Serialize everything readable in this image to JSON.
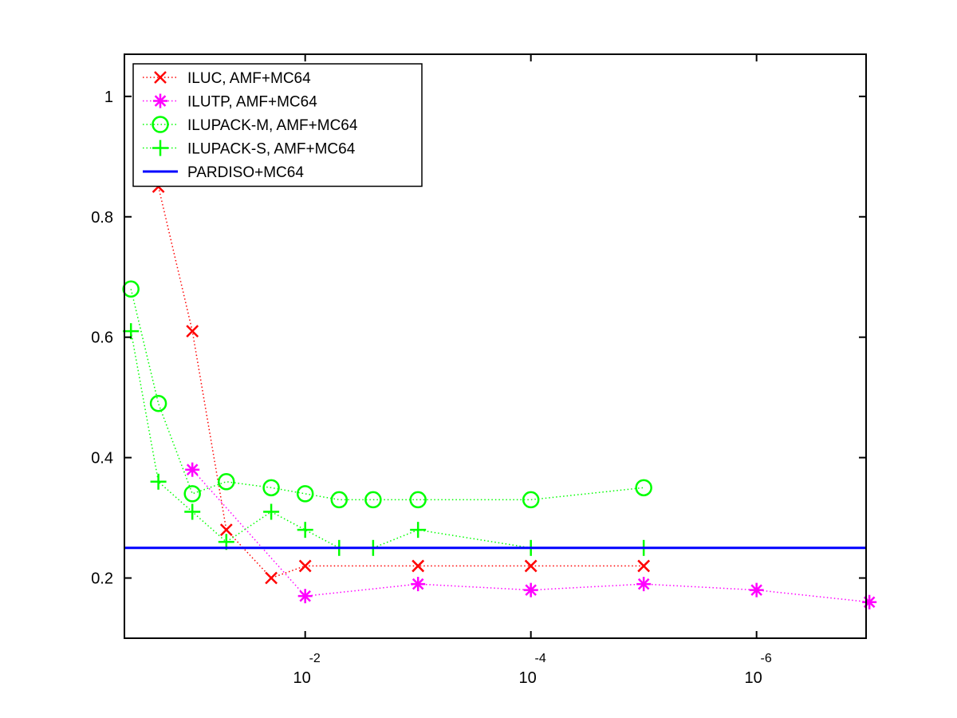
{
  "chart_data": {
    "type": "line",
    "title": "",
    "xlabel": "",
    "ylabel": "",
    "x_scale": "log",
    "x_reversed": true,
    "xlim": [
      0.4,
      1.07e-07
    ],
    "ylim": [
      0.1,
      1.07
    ],
    "grid": false,
    "legend_position": "top-left",
    "x_ticks": [
      {
        "value": 0.01,
        "base": "10",
        "exponent": "-2"
      },
      {
        "value": 0.0001,
        "base": "10",
        "exponent": "-4"
      },
      {
        "value": 1e-06,
        "base": "10",
        "exponent": "-6"
      }
    ],
    "y_ticks": [
      {
        "value": 0.2,
        "label": "0.2"
      },
      {
        "value": 0.4,
        "label": "0.4"
      },
      {
        "value": 0.6,
        "label": "0.6"
      },
      {
        "value": 0.8,
        "label": "0.8"
      },
      {
        "value": 1.0,
        "label": "1"
      }
    ],
    "series": [
      {
        "name": "ILUC, AMF+MC64",
        "color": "#ff0000",
        "marker": "x",
        "line": "dotted",
        "x": [
          0.2,
          0.1,
          0.05,
          0.02,
          0.01
        ],
        "y": [
          0.85,
          0.61,
          0.28,
          0.2,
          0.22
        ],
        "extra_points": {
          "x": [
            0.001,
            0.0001,
            1e-05
          ],
          "y": [
            0.22,
            0.22,
            0.22
          ]
        }
      },
      {
        "name": "ILUTP, AMF+MC64",
        "color": "#ff00ff",
        "marker": "asterisk",
        "line": "dotted",
        "x": [
          0.1,
          0.01,
          0.001,
          0.0001,
          1e-05,
          1e-06,
          1e-07
        ],
        "y": [
          0.38,
          0.17,
          0.19,
          0.18,
          0.19,
          0.18,
          0.16
        ]
      },
      {
        "name": "ILUPACK-M, AMF+MC64",
        "color": "#00ff00",
        "marker": "circle",
        "line": "dotted",
        "x": [
          0.35,
          0.2,
          0.1,
          0.05,
          0.02,
          0.01,
          0.005,
          0.0025,
          0.001,
          0.0001,
          1e-05
        ],
        "y": [
          0.68,
          0.49,
          0.34,
          0.36,
          0.35,
          0.34,
          0.33,
          0.33,
          0.33,
          0.33,
          0.35
        ]
      },
      {
        "name": "ILUPACK-S, AMF+MC64",
        "color": "#00ff00",
        "marker": "plus",
        "line": "dotted",
        "x": [
          0.35,
          0.2,
          0.1,
          0.05,
          0.02,
          0.01,
          0.005,
          0.0025,
          0.001,
          0.0001,
          1e-05
        ],
        "y": [
          0.61,
          0.36,
          0.31,
          0.26,
          0.31,
          0.28,
          0.25,
          0.25,
          0.28,
          0.25,
          0.25
        ]
      },
      {
        "name": "PARDISO+MC64",
        "color": "#0000ff",
        "marker": "none",
        "line": "solid",
        "x": [
          0.4,
          1.07e-07
        ],
        "y": [
          0.25,
          0.25
        ]
      }
    ]
  }
}
